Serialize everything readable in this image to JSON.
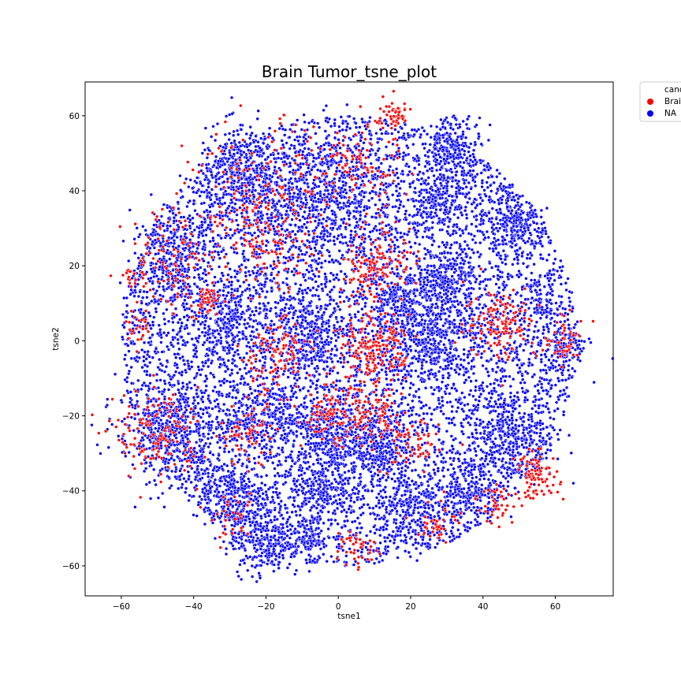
{
  "chart_data": {
    "type": "scatter",
    "title": "Brain Tumor_tsne_plot",
    "xlabel": "tsne1",
    "ylabel": "tsne2",
    "xlim": [
      -70,
      76
    ],
    "ylim": [
      -68,
      69
    ],
    "xticks": [
      -60,
      -40,
      -20,
      0,
      20,
      40,
      60
    ],
    "yticks": [
      -60,
      -40,
      -20,
      0,
      20,
      40,
      60
    ],
    "grid": false,
    "legend": {
      "placement": "outside-top-right",
      "title": "canc",
      "entries": [
        {
          "label": "Brai",
          "color": "#ff0000"
        },
        {
          "label": "NA",
          "color": "#0000ff"
        }
      ]
    },
    "series": [
      {
        "name": "Brai",
        "color": "#ff0000",
        "description": "red points concentrated in several sub-clusters",
        "clusters": [
          {
            "center": [
              15,
              60
            ],
            "spread": 2.5,
            "count": 60
          },
          {
            "center": [
              5,
              46
            ],
            "spread": 6,
            "count": 90
          },
          {
            "center": [
              -22,
              38
            ],
            "spread": 10,
            "count": 150
          },
          {
            "center": [
              -45,
              22
            ],
            "spread": 7,
            "count": 110
          },
          {
            "center": [
              -18,
              28
            ],
            "spread": 6,
            "count": 90
          },
          {
            "center": [
              12,
              22
            ],
            "spread": 5,
            "count": 90
          },
          {
            "center": [
              -36,
              11
            ],
            "spread": 2,
            "count": 40
          },
          {
            "center": [
              7,
              17
            ],
            "spread": 3,
            "count": 40
          },
          {
            "center": [
              -18,
              -4
            ],
            "spread": 5,
            "count": 110
          },
          {
            "center": [
              8,
              -4
            ],
            "spread": 5,
            "count": 140
          },
          {
            "center": [
              13,
              0
            ],
            "spread": 4,
            "count": 60
          },
          {
            "center": [
              45,
              5
            ],
            "spread": 5,
            "count": 130
          },
          {
            "center": [
              63,
              0
            ],
            "spread": 3,
            "count": 50
          },
          {
            "center": [
              -50,
              -25
            ],
            "spread": 6,
            "count": 140
          },
          {
            "center": [
              -25,
              -25
            ],
            "spread": 4,
            "count": 60
          },
          {
            "center": [
              -2,
              -20
            ],
            "spread": 4,
            "count": 90
          },
          {
            "center": [
              10,
              -20
            ],
            "spread": 4,
            "count": 80
          },
          {
            "center": [
              20,
              -28
            ],
            "spread": 4,
            "count": 60
          },
          {
            "center": [
              55,
              -36
            ],
            "spread": 3,
            "count": 90
          },
          {
            "center": [
              44,
              -43
            ],
            "spread": 3,
            "count": 40
          },
          {
            "center": [
              28,
              -48
            ],
            "spread": 3,
            "count": 40
          },
          {
            "center": [
              5,
              -55
            ],
            "spread": 3,
            "count": 40
          },
          {
            "center": [
              -29,
              -48
            ],
            "spread": 3,
            "count": 30
          },
          {
            "center": [
              -57,
              17
            ],
            "spread": 1.2,
            "count": 15
          },
          {
            "center": [
              -55,
              3
            ],
            "spread": 2,
            "count": 25
          }
        ]
      },
      {
        "name": "NA",
        "color": "#0000ff",
        "description": "blue points filling a roughly circular cloud",
        "cloud": {
          "center": [
            3,
            0
          ],
          "radius_x": 63,
          "radius_y": 60,
          "count": 9000
        },
        "clusters": [
          {
            "center": [
              -27,
              45
            ],
            "spread": 6,
            "count": 350
          },
          {
            "center": [
              -5,
              38
            ],
            "spread": 9,
            "count": 500
          },
          {
            "center": [
              32,
              52
            ],
            "spread": 4,
            "count": 220
          },
          {
            "center": [
              28,
              38
            ],
            "spread": 4,
            "count": 180
          },
          {
            "center": [
              48,
              30
            ],
            "spread": 4,
            "count": 220
          },
          {
            "center": [
              -45,
              22
            ],
            "spread": 6,
            "count": 260
          },
          {
            "center": [
              30,
              15
            ],
            "spread": 4,
            "count": 260
          },
          {
            "center": [
              16,
              10
            ],
            "spread": 4,
            "count": 200
          },
          {
            "center": [
              -30,
              5
            ],
            "spread": 5,
            "count": 220
          },
          {
            "center": [
              -8,
              2
            ],
            "spread": 5,
            "count": 260
          },
          {
            "center": [
              25,
              0
            ],
            "spread": 6,
            "count": 300
          },
          {
            "center": [
              -47,
              -25
            ],
            "spread": 7,
            "count": 420
          },
          {
            "center": [
              -22,
              -20
            ],
            "spread": 5,
            "count": 250
          },
          {
            "center": [
              -2,
              -25
            ],
            "spread": 5,
            "count": 300
          },
          {
            "center": [
              10,
              -28
            ],
            "spread": 5,
            "count": 280
          },
          {
            "center": [
              48,
              -25
            ],
            "spread": 6,
            "count": 300
          },
          {
            "center": [
              -30,
              -42
            ],
            "spread": 5,
            "count": 260
          },
          {
            "center": [
              -20,
              -53
            ],
            "spread": 5,
            "count": 280
          },
          {
            "center": [
              -5,
              -40
            ],
            "spread": 4,
            "count": 180
          },
          {
            "center": [
              20,
              -45
            ],
            "spread": 5,
            "count": 200
          },
          {
            "center": [
              35,
              -40
            ],
            "spread": 4,
            "count": 160
          },
          {
            "center": [
              -8,
              -52
            ],
            "spread": 3,
            "count": 80
          },
          {
            "center": [
              63,
              -2
            ],
            "spread": 3,
            "count": 100
          },
          {
            "center": [
              57,
              9
            ],
            "spread": 1.5,
            "count": 30
          }
        ]
      }
    ]
  }
}
